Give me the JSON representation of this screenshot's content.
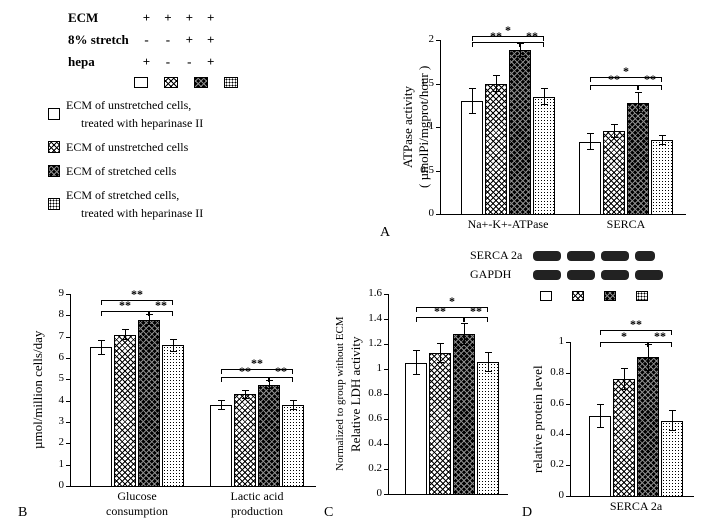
{
  "legend_header": {
    "rows": [
      {
        "label": "ECM",
        "vals": [
          "+",
          "+",
          "+",
          "+"
        ]
      },
      {
        "label": "8% stretch",
        "vals": [
          "-",
          "-",
          "+",
          "+"
        ]
      },
      {
        "label": "hepa",
        "vals": [
          "+",
          "-",
          "-",
          "+"
        ]
      }
    ]
  },
  "legend_text": [
    "ECM of unstretched cells, treated with heparinase II",
    "ECM of unstretched cells",
    "ECM of  stretched cells",
    "ECM of  stretched cells, treated with heparinase II"
  ],
  "swatch_classes": [
    "white",
    "cross",
    "darkcross",
    "dots"
  ],
  "panel_A": {
    "type": "bar",
    "y_title": "ATPase activity\n( µmolPi/mgprot/hour )",
    "ylim": [
      0,
      2
    ],
    "ytick_step": 0.5,
    "groups": [
      "Na+-K+-ATPase",
      "SERCA"
    ],
    "values": [
      [
        1.3,
        1.5,
        1.88,
        1.35
      ],
      [
        0.83,
        0.95,
        1.28,
        0.85
      ]
    ],
    "errors": [
      [
        0.15,
        0.1,
        0.08,
        0.1
      ],
      [
        0.1,
        0.08,
        0.12,
        0.06
      ]
    ],
    "bar_classes": [
      "white",
      "cross",
      "darkcross",
      "dots"
    ],
    "sig": [
      {
        "group": 0,
        "from": 0,
        "to": 3,
        "y": 2.05,
        "label": "*"
      },
      {
        "group": 0,
        "from": 0,
        "to": 2,
        "y": 1.98,
        "label": "**"
      },
      {
        "group": 0,
        "from": 2,
        "to": 3,
        "y": 1.98,
        "label": "**"
      },
      {
        "group": 1,
        "from": 0,
        "to": 3,
        "y": 1.58,
        "label": "*"
      },
      {
        "group": 1,
        "from": 0,
        "to": 2,
        "y": 1.48,
        "label": "**"
      },
      {
        "group": 1,
        "from": 2,
        "to": 3,
        "y": 1.48,
        "label": "**"
      }
    ]
  },
  "panel_B": {
    "type": "bar",
    "y_title": "µmol/million cells/day",
    "ylim": [
      0,
      9
    ],
    "ytick_step": 1,
    "groups": [
      "Glucose\nconsumption",
      "Lactic acid\nproduction"
    ],
    "values": [
      [
        6.5,
        7.1,
        7.8,
        6.6
      ],
      [
        3.8,
        4.3,
        4.75,
        3.8
      ]
    ],
    "errors": [
      [
        0.35,
        0.25,
        0.25,
        0.3
      ],
      [
        0.25,
        0.2,
        0.2,
        0.25
      ]
    ],
    "bar_classes": [
      "white",
      "cross",
      "darkcross",
      "dots"
    ],
    "sig": [
      {
        "group": 0,
        "from": 0,
        "to": 3,
        "y": 8.7,
        "label": "**"
      },
      {
        "group": 0,
        "from": 0,
        "to": 2,
        "y": 8.2,
        "label": "**"
      },
      {
        "group": 0,
        "from": 2,
        "to": 3,
        "y": 8.2,
        "label": "**"
      },
      {
        "group": 1,
        "from": 0,
        "to": 3,
        "y": 5.5,
        "label": "**"
      },
      {
        "group": 1,
        "from": 0,
        "to": 2,
        "y": 5.1,
        "label": "**"
      },
      {
        "group": 1,
        "from": 2,
        "to": 3,
        "y": 5.1,
        "label": "**"
      }
    ]
  },
  "panel_C": {
    "type": "bar",
    "y_title": "Relative LDH activity",
    "y_sub": "Normalized to group without ECM",
    "ylim": [
      0,
      1.6
    ],
    "ytick_step": 0.2,
    "groups": [
      ""
    ],
    "values": [
      [
        1.05,
        1.13,
        1.28,
        1.06
      ]
    ],
    "errors": [
      [
        0.1,
        0.08,
        0.09,
        0.08
      ]
    ],
    "bar_classes": [
      "white",
      "cross",
      "darkcross",
      "dots"
    ],
    "sig": [
      {
        "group": 0,
        "from": 0,
        "to": 3,
        "y": 1.5,
        "label": "*"
      },
      {
        "group": 0,
        "from": 0,
        "to": 2,
        "y": 1.42,
        "label": "**"
      },
      {
        "group": 0,
        "from": 2,
        "to": 3,
        "y": 1.42,
        "label": "**"
      }
    ]
  },
  "panel_D": {
    "type": "bar",
    "y_title": "relative protein level",
    "ylim": [
      0,
      1
    ],
    "ytick_step": 0.2,
    "groups": [
      "SERCA 2a"
    ],
    "values": [
      [
        0.52,
        0.76,
        0.9,
        0.49
      ]
    ],
    "errors": [
      [
        0.08,
        0.07,
        0.09,
        0.07
      ]
    ],
    "bar_classes": [
      "white",
      "cross",
      "darkcross",
      "dots"
    ],
    "sig": [
      {
        "group": 0,
        "from": 0,
        "to": 3,
        "y": 1.08,
        "label": "**"
      },
      {
        "group": 0,
        "from": 0,
        "to": 2,
        "y": 1.0,
        "label": "*"
      },
      {
        "group": 0,
        "from": 2,
        "to": 3,
        "y": 1.0,
        "label": "**"
      }
    ],
    "blot_labels": [
      "SERCA 2a",
      "GAPDH"
    ]
  },
  "panel_labels": {
    "A": "A",
    "B": "B",
    "C": "C",
    "D": "D"
  }
}
